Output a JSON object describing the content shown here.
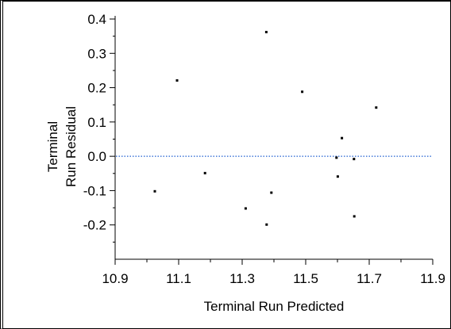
{
  "chart_data": {
    "type": "scatter",
    "xlabel": "Terminal Run Predicted",
    "ylabel": [
      "Terminal",
      "Run Residual"
    ],
    "xlim": [
      10.9,
      11.9
    ],
    "ylim": [
      -0.3,
      0.4
    ],
    "x_ticks": [
      10.9,
      11.1,
      11.3,
      11.5,
      11.7,
      11.9
    ],
    "x_tick_labels": [
      "10.9",
      "11.1",
      "11.3",
      "11.5",
      "11.7",
      "11.9"
    ],
    "y_ticks": [
      0.4,
      0.3,
      0.2,
      0.1,
      0.0,
      -0.1,
      -0.2
    ],
    "y_tick_labels": [
      "0.4",
      "0.3",
      "0.2",
      "0.1",
      "0.0",
      "-0.1",
      "-0.2"
    ],
    "reference_line": {
      "y": 0.0,
      "style": "dotted",
      "color": "#1f5fd0"
    },
    "grid": false,
    "points": [
      {
        "x": 11.025,
        "y": -0.102
      },
      {
        "x": 11.095,
        "y": 0.221
      },
      {
        "x": 11.183,
        "y": -0.049
      },
      {
        "x": 11.311,
        "y": -0.152
      },
      {
        "x": 11.376,
        "y": 0.362
      },
      {
        "x": 11.377,
        "y": -0.199
      },
      {
        "x": 11.392,
        "y": -0.106
      },
      {
        "x": 11.489,
        "y": 0.188
      },
      {
        "x": 11.597,
        "y": -0.004
      },
      {
        "x": 11.601,
        "y": -0.059
      },
      {
        "x": 11.614,
        "y": 0.053
      },
      {
        "x": 11.652,
        "y": -0.008
      },
      {
        "x": 11.653,
        "y": -0.175
      },
      {
        "x": 11.722,
        "y": 0.142
      }
    ]
  }
}
